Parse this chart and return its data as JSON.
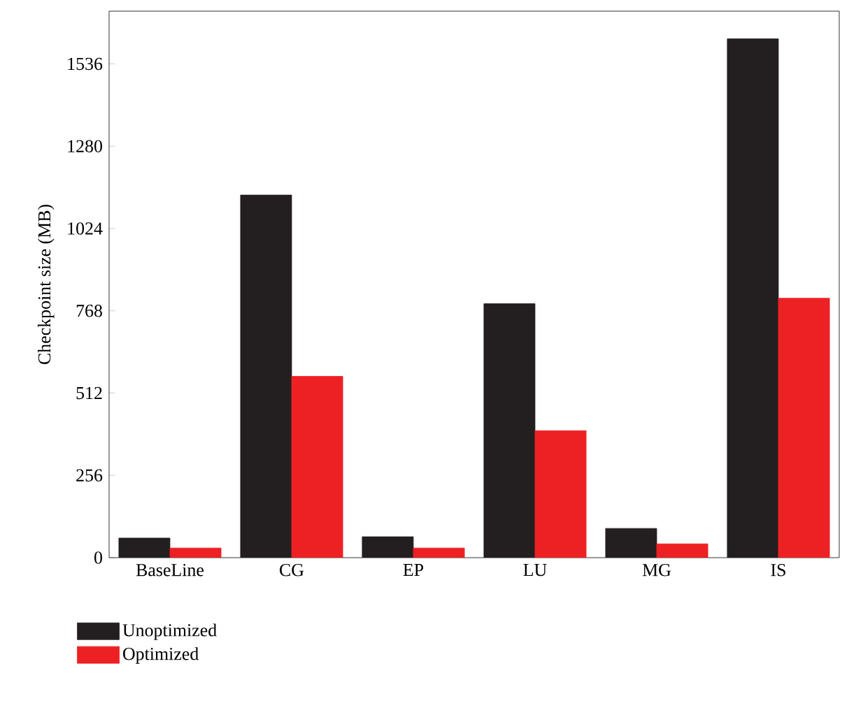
{
  "chart_data": {
    "type": "bar",
    "ylabel": "Checkpoint size (MB)",
    "categories": [
      "BaseLine",
      "CG",
      "EP",
      "LU",
      "MG",
      "IS"
    ],
    "series": [
      {
        "name": "Unoptimized",
        "color": "#231f20",
        "values": [
          61,
          1128,
          65,
          790,
          91,
          1614
        ]
      },
      {
        "name": "Optimized",
        "color": "#ed2024",
        "values": [
          30,
          564,
          30,
          395,
          43,
          807
        ]
      }
    ],
    "ylim": [
      0,
      1700
    ],
    "yticks": [
      0,
      256,
      512,
      768,
      1024,
      1280,
      1536
    ],
    "legend": "bottom",
    "grid": false
  }
}
